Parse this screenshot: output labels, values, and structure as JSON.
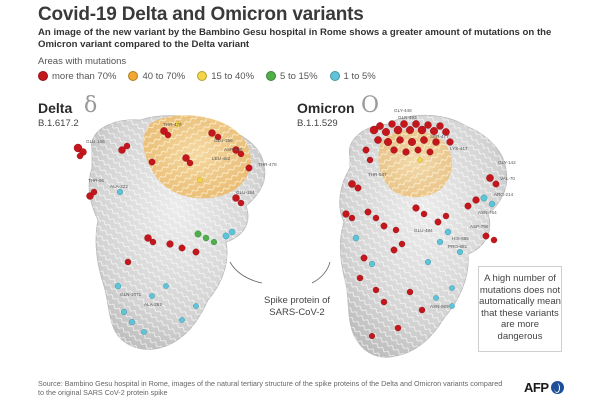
{
  "title": "Covid-19 Delta and Omicron variants",
  "subtitle": "An image of the new variant by the Bambino Gesu hospital in Rome shows a greater amount of mutations on the Omicron variant compared to the Delta variant",
  "legend": {
    "title": "Areas with mutations",
    "items": [
      {
        "label": "more than 70%",
        "color": "#c4161c"
      },
      {
        "label": "40 to 70%",
        "color": "#f0a830"
      },
      {
        "label": "15 to 40%",
        "color": "#f3d547"
      },
      {
        "label": "5 to 15%",
        "color": "#4fb04a"
      },
      {
        "label": "1 to 5%",
        "color": "#5fc4d8"
      }
    ]
  },
  "variants": {
    "delta": {
      "name": "Delta",
      "symbol": "δ",
      "code": "B.1.617.2",
      "residues": [
        "GLU-156",
        "THR-478",
        "GLU-156",
        "ASP-950",
        "THR-95",
        "ALA-222",
        "GLU-154",
        "GLN-1071",
        "THR-478",
        "ALA-262",
        "LEU-452"
      ]
    },
    "omicron": {
      "name": "Omicron",
      "symbol": "O",
      "code": "B.1.1.529",
      "residues": [
        "GLY-446",
        "GLN-493",
        "SER-477",
        "LYS-417",
        "GLY-142",
        "THR-547",
        "VAL-70",
        "ARG-214",
        "ASN-764",
        "HIS-655",
        "ASP-796",
        "GLU-484",
        "ASN-969",
        "PRO-681"
      ]
    }
  },
  "callout": {
    "text": "Spike protein of SARS-CoV-2"
  },
  "note": {
    "text": "A high number of mutations does not automatically mean that these variants are more dangerous"
  },
  "source": "Source: Bambino Gesu hospital in Rome, images of the natural tertiary structure of the spike proteins of the Delta and Omicron variants compared to the original SARS CoV-2 protein spike",
  "logo": {
    "text": "AFP"
  }
}
